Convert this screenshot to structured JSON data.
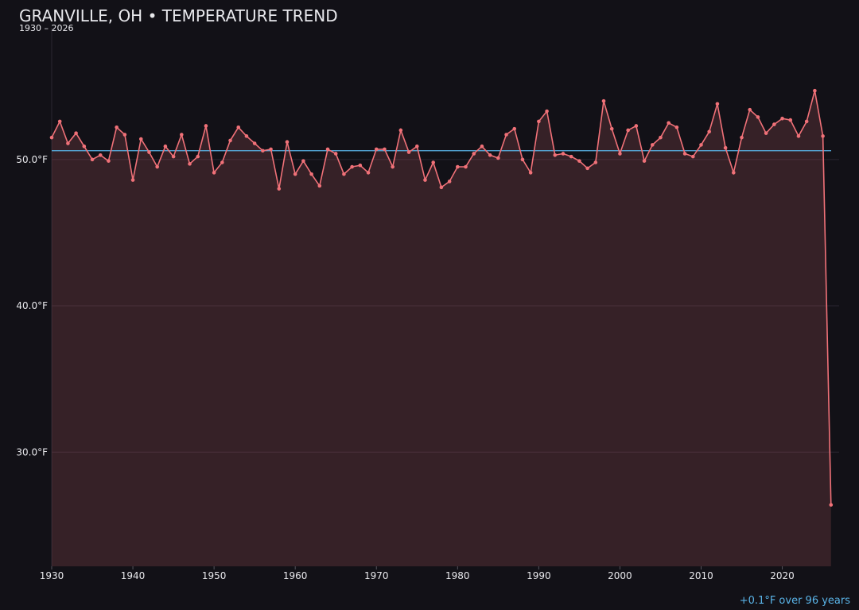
{
  "chart_data": {
    "type": "line",
    "title": "GRANVILLE, OH • TEMPERATURE TREND",
    "subtitle": "1930 – 2026",
    "annotation": "+0.1°F over 96 years",
    "x": [
      1930,
      1931,
      1932,
      1933,
      1934,
      1935,
      1936,
      1937,
      1938,
      1939,
      1940,
      1941,
      1942,
      1943,
      1944,
      1945,
      1946,
      1947,
      1948,
      1949,
      1950,
      1951,
      1952,
      1953,
      1954,
      1955,
      1956,
      1957,
      1958,
      1959,
      1960,
      1961,
      1962,
      1963,
      1964,
      1965,
      1966,
      1967,
      1968,
      1969,
      1970,
      1971,
      1972,
      1973,
      1974,
      1975,
      1976,
      1977,
      1978,
      1979,
      1980,
      1981,
      1982,
      1983,
      1984,
      1985,
      1986,
      1987,
      1988,
      1989,
      1990,
      1991,
      1992,
      1993,
      1994,
      1995,
      1996,
      1997,
      1998,
      1999,
      2000,
      2001,
      2002,
      2003,
      2004,
      2005,
      2006,
      2007,
      2008,
      2009,
      2010,
      2011,
      2012,
      2013,
      2014,
      2015,
      2016,
      2017,
      2018,
      2019,
      2020,
      2021,
      2022,
      2023,
      2024,
      2025,
      2026
    ],
    "series": [
      {
        "name": "Temperature",
        "color": "#f07178",
        "values": [
          51.5,
          52.6,
          51.1,
          51.8,
          50.9,
          50.0,
          50.3,
          49.9,
          52.2,
          51.7,
          48.6,
          51.4,
          50.5,
          49.5,
          50.9,
          50.2,
          51.7,
          49.7,
          50.2,
          52.3,
          49.1,
          49.8,
          51.3,
          52.2,
          51.6,
          51.1,
          50.6,
          50.7,
          48.0,
          51.2,
          49.0,
          49.9,
          49.0,
          48.2,
          50.7,
          50.4,
          49.0,
          49.5,
          49.6,
          49.1,
          50.7,
          50.7,
          49.5,
          52.0,
          50.5,
          50.9,
          48.6,
          49.8,
          48.1,
          48.5,
          49.5,
          49.5,
          50.4,
          50.9,
          50.3,
          50.1,
          51.7,
          52.1,
          50.0,
          49.1,
          52.6,
          53.3,
          50.3,
          50.4,
          50.2,
          49.9,
          49.4,
          49.8,
          54.0,
          52.1,
          50.4,
          52.0,
          52.3,
          49.9,
          51.0,
          51.5,
          52.5,
          52.2,
          50.4,
          50.2,
          51.0,
          51.9,
          53.8,
          50.8,
          49.1,
          51.5,
          53.4,
          52.9,
          51.8,
          52.4,
          52.8,
          52.7,
          51.6,
          52.6,
          54.7,
          51.6,
          26.4
        ]
      }
    ],
    "reference_line": {
      "value": 50.6,
      "color": "#5ab4e8"
    },
    "xlim": [
      1930,
      2027
    ],
    "ylim": [
      22.2,
      59
    ],
    "xticks": [
      1930,
      1940,
      1950,
      1960,
      1970,
      1980,
      1990,
      2000,
      2010,
      2020
    ],
    "yticks": [
      {
        "value": 30,
        "label": "30.0°F"
      },
      {
        "value": 40,
        "label": "40.0°F"
      },
      {
        "value": 50,
        "label": "50.0°F"
      }
    ],
    "grid": true
  }
}
